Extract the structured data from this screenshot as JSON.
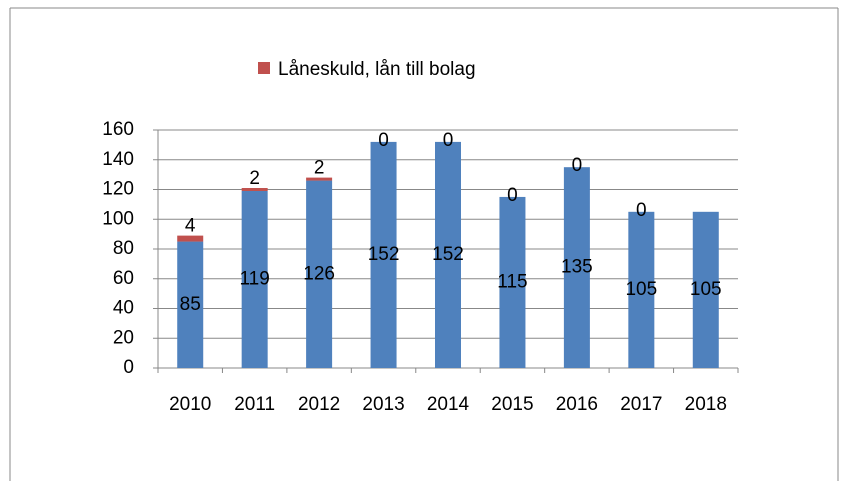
{
  "chart_data": {
    "type": "stacked_bar",
    "categories": [
      "2010",
      "2011",
      "2012",
      "2013",
      "2014",
      "2015",
      "2016",
      "2017",
      "2018"
    ],
    "series": [
      {
        "color": "#4f81bd",
        "values": [
          85,
          119,
          126,
          152,
          152,
          115,
          135,
          105,
          105
        ]
      },
      {
        "name": "Låneskuld, lån till bolag",
        "color": "#c0504d",
        "values": [
          4,
          2,
          2,
          0,
          0,
          0,
          0,
          0,
          null
        ]
      }
    ],
    "ylim": [
      0,
      160
    ],
    "yticks": [
      0,
      20,
      40,
      60,
      80,
      100,
      120,
      140,
      160
    ],
    "grid": true,
    "legend": "top"
  }
}
